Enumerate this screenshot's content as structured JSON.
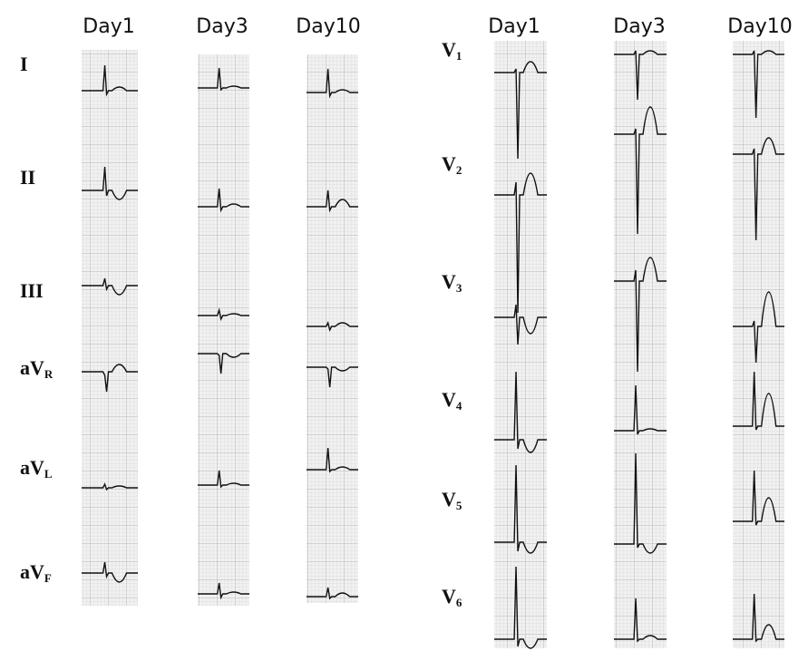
{
  "limb_leads": {
    "columns": [
      "Day1",
      "Day3",
      "Day10"
    ],
    "leads": [
      {
        "main": "I"
      },
      {
        "main": "II"
      },
      {
        "main": "III"
      },
      {
        "main": "aV",
        "sub": "R"
      },
      {
        "main": "aV",
        "sub": "L"
      },
      {
        "main": "aV",
        "sub": "F"
      }
    ]
  },
  "chest_leads": {
    "columns": [
      "Day1",
      "Day3",
      "Day10"
    ],
    "leads": [
      {
        "main": "V",
        "sub": "1"
      },
      {
        "main": "V",
        "sub": "2"
      },
      {
        "main": "V",
        "sub": "3"
      },
      {
        "main": "V",
        "sub": "4"
      },
      {
        "main": "V",
        "sub": "5"
      },
      {
        "main": "V",
        "sub": "6"
      }
    ]
  }
}
